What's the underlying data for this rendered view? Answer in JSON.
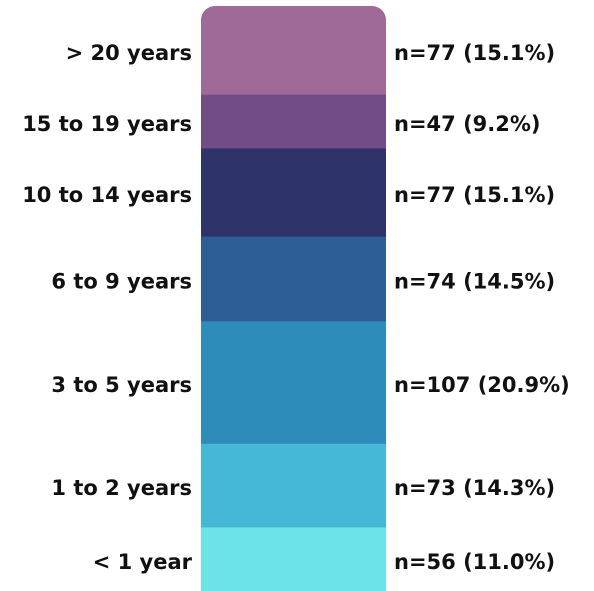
{
  "chart_data": {
    "type": "stacked-column",
    "categories": [
      "< 1 year",
      "1 to 2 years",
      "3 to 5 years",
      "6 to 9 years",
      "10 to 14 years",
      "15 to 19 years",
      "> 20 years"
    ],
    "values": [
      56,
      73,
      107,
      74,
      77,
      47,
      77
    ],
    "value_labels": [
      "n=56 (11.0%)",
      "n=73 (14.3%)",
      "n=107 (20.9%)",
      "n=74 (14.5%)",
      "n=77 (15.1%)",
      "n=47 (9.2%)",
      "n=77 (15.1%)"
    ],
    "colors": [
      "#6ce3e6",
      "#44b8d6",
      "#2e8cba",
      "#2e5e96",
      "#2e336a",
      "#724c87",
      "#a06a98"
    ]
  }
}
